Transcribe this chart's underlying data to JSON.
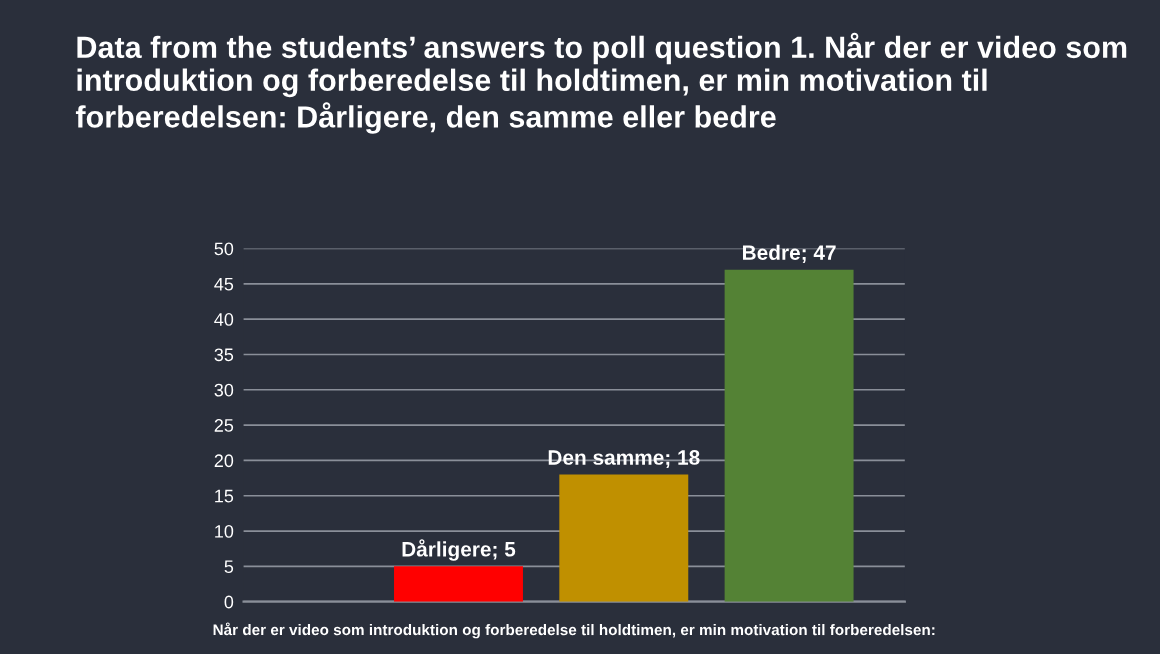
{
  "chart_data": {
    "type": "bar",
    "title": "Data from the students’ answers to poll question 1. Når der er video som introduktion og forberedelse til holdtimen, er min motivation til forberedelsen: Dårligere, den samme eller bedre",
    "xlabel": "Når der er video som introduktion og forberedelse til holdtimen, er min motivation til forberedelsen:",
    "categories": [
      null,
      null,
      null
    ],
    "values": [
      5,
      18,
      47
    ],
    "colors": [
      "#ff0000",
      "#c09000",
      "#548235"
    ],
    "value_labels": [
      "Dårligere; 5",
      "Den samme; 18",
      "Bedre; 47"
    ],
    "ylim": [
      0,
      50
    ],
    "yticks": [
      0,
      5,
      10,
      15,
      20,
      25,
      30,
      35,
      40,
      45,
      50
    ],
    "grid": "y",
    "tick_labels": "y"
  }
}
